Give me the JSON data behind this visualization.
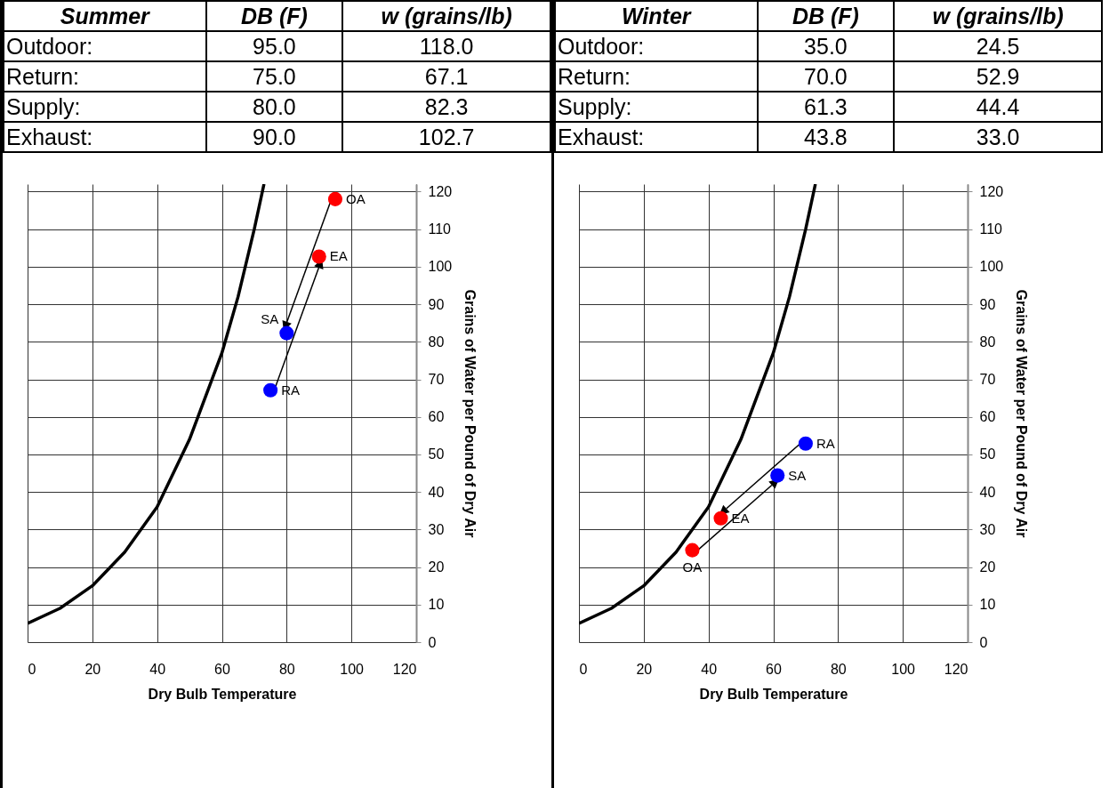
{
  "chart_data": [
    {
      "type": "scatter",
      "xlabel": "Dry Bulb Temperature",
      "ylabel": "Grains of Water per Pound of Dry Air",
      "xlim": [
        0,
        120
      ],
      "ylim": [
        0,
        122
      ],
      "xticks": [
        0,
        20,
        40,
        60,
        80,
        100,
        120
      ],
      "yticks": [
        0,
        10,
        20,
        30,
        40,
        50,
        60,
        70,
        80,
        90,
        100,
        110,
        120
      ],
      "grid": true,
      "series": [
        {
          "type": "line",
          "color": "#000000",
          "x": [
            0,
            10,
            20,
            30,
            40,
            50,
            60,
            65,
            70,
            73
          ],
          "values": [
            5,
            9,
            15,
            24,
            36,
            54,
            77,
            92,
            110,
            122
          ]
        },
        {
          "type": "scatter",
          "color": "#ff0000",
          "marker": "circle",
          "x": [
            95,
            90
          ],
          "values": [
            118,
            102.7
          ]
        },
        {
          "type": "scatter",
          "color": "#0000ff",
          "marker": "circle",
          "x": [
            80,
            75
          ],
          "values": [
            82.3,
            67.1
          ]
        }
      ],
      "annotations": [
        "Summer",
        "DB (F)",
        "w (grains/lb)",
        "Outdoor:",
        "95.0",
        "118.0",
        "Return:",
        "75.0",
        "67.1",
        "Supply:",
        "80.0",
        "82.3",
        "Exhaust:",
        "90.0",
        "102.7",
        {
          "text": "OA",
          "x": 95,
          "y": 118
        },
        {
          "text": "EA",
          "x": 90,
          "y": 102.7
        },
        {
          "text": "SA",
          "x": 80,
          "y": 82.3
        },
        {
          "text": "RA",
          "x": 75,
          "y": 67.1
        }
      ]
    },
    {
      "type": "scatter",
      "xlabel": "Dry Bulb Temperature",
      "ylabel": "Grains of Water per Pound of Dry Air",
      "xlim": [
        0,
        120
      ],
      "ylim": [
        0,
        122
      ],
      "xticks": [
        0,
        20,
        40,
        60,
        80,
        100,
        120
      ],
      "yticks": [
        0,
        10,
        20,
        30,
        40,
        50,
        60,
        70,
        80,
        90,
        100,
        110,
        120
      ],
      "grid": true,
      "series": [
        {
          "type": "line",
          "color": "#000000",
          "x": [
            0,
            10,
            20,
            30,
            40,
            50,
            60,
            65,
            70,
            73
          ],
          "values": [
            5,
            9,
            15,
            24,
            36,
            54,
            77,
            92,
            110,
            122
          ]
        },
        {
          "type": "scatter",
          "color": "#ff0000",
          "marker": "circle",
          "x": [
            35,
            43.8
          ],
          "values": [
            24.5,
            33.0
          ]
        },
        {
          "type": "scatter",
          "color": "#0000ff",
          "marker": "circle",
          "x": [
            61.3,
            70
          ],
          "values": [
            44.4,
            52.9
          ]
        }
      ],
      "annotations": [
        "Winter",
        "DB (F)",
        "w (grains/lb)",
        "Outdoor:",
        "35.0",
        "24.5",
        "Return:",
        "70.0",
        "52.9",
        "Supply:",
        "61.3",
        "44.4",
        "Exhaust:",
        "43.8",
        "33.0",
        {
          "text": "RA",
          "x": 70,
          "y": 52.9
        },
        {
          "text": "SA",
          "x": 61.3,
          "y": 44.4
        },
        {
          "text": "EA",
          "x": 43.8,
          "y": 33.0
        },
        {
          "text": "OA",
          "x": 35,
          "y": 24.5
        }
      ]
    }
  ]
}
